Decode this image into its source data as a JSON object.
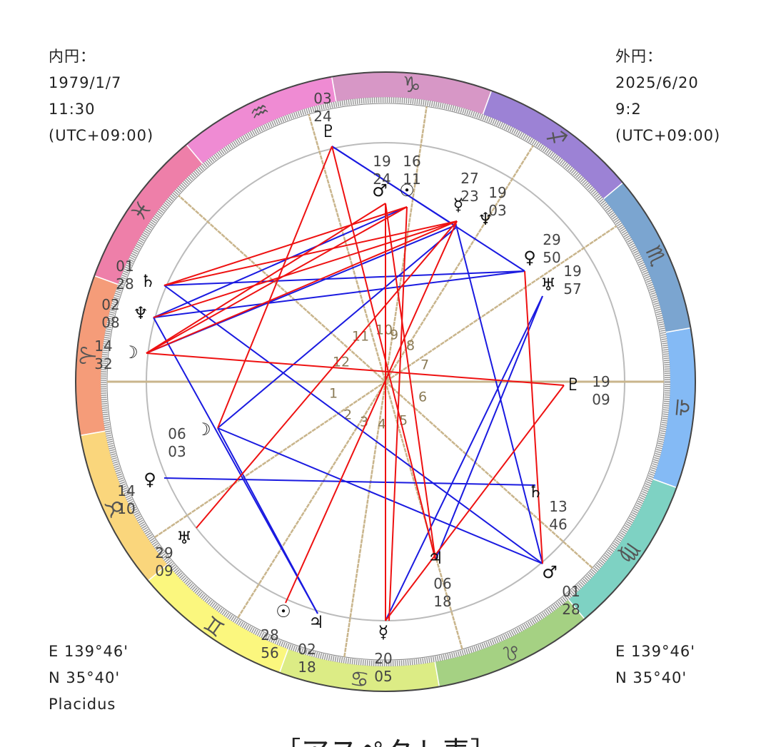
{
  "header": {
    "inner": [
      "内円：",
      "1979/1/7",
      "11:30",
      "(UTC+09:00)"
    ],
    "outer": [
      "外円：",
      "2025/6/20",
      "9:2",
      "(UTC+09:00)"
    ]
  },
  "footer": {
    "inner": [
      "E 139°46'",
      "N 35°40'",
      "Placidus"
    ],
    "outer": [
      "E 139°46'",
      "N 35°40'"
    ]
  },
  "signs": [
    "♑",
    "♒",
    "♓",
    "♈",
    "♉",
    "♊",
    "♋",
    "♌",
    "♍",
    "♎",
    "♏",
    "♐"
  ],
  "houses": [
    "1",
    "2",
    "3",
    "4",
    "5",
    "6",
    "7",
    "8",
    "9",
    "10",
    "11",
    "12"
  ],
  "planets": [
    {
      "glyph": "♇",
      "degree": "03",
      "minute": "24"
    },
    {
      "glyph": "♂",
      "degree": "19",
      "minute": "24"
    },
    {
      "glyph": "☉",
      "degree": "16",
      "minute": "11"
    },
    {
      "glyph": "☿",
      "degree": "27",
      "minute": "23"
    },
    {
      "glyph": "♆",
      "degree": "19",
      "minute": "03"
    },
    {
      "glyph": "♀",
      "degree": "29",
      "minute": "50"
    },
    {
      "glyph": "♅",
      "degree": "19",
      "minute": "57"
    },
    {
      "glyph": "♇",
      "degree": "19",
      "minute": "09"
    },
    {
      "glyph": "♄",
      "degree": "13",
      "minute": "46"
    },
    {
      "glyph": "♂",
      "degree": "01",
      "minute": "28"
    },
    {
      "glyph": "♃",
      "degree": "06",
      "minute": "18"
    },
    {
      "glyph": "☿",
      "degree": "20",
      "minute": "05"
    },
    {
      "glyph": "♃",
      "degree": "02",
      "minute": "18"
    },
    {
      "glyph": "☉",
      "degree": "28",
      "minute": "56"
    },
    {
      "glyph": "♅",
      "degree": "29",
      "minute": "09"
    },
    {
      "glyph": "♀",
      "degree": "14",
      "minute": "10"
    },
    {
      "glyph": "☽",
      "degree": "06",
      "minute": "03"
    },
    {
      "glyph": "☽",
      "degree": "14",
      "minute": "32"
    },
    {
      "glyph": "♆",
      "degree": "02",
      "minute": "08"
    },
    {
      "glyph": "♄",
      "degree": "01",
      "minute": "28"
    }
  ],
  "caption": "［アスペクト表］"
}
